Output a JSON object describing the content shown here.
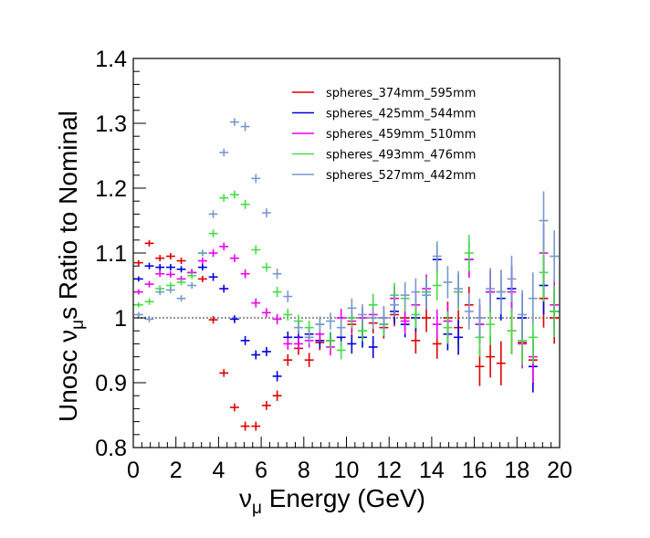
{
  "chart_data": {
    "type": "scatter",
    "title": "",
    "xlabel": "ν_μ Energy (GeV)",
    "ylabel": "Unosc ν_μs Ratio to Nominal",
    "xlabel_parts": {
      "nu": "ν",
      "sub": "μ",
      "rest": " Energy (GeV)"
    },
    "ylabel_parts": {
      "pre": "Unosc ν",
      "sub": "μ",
      "rest": "s Ratio to Nominal"
    },
    "xlim": [
      0,
      20
    ],
    "ylim": [
      0.8,
      1.4
    ],
    "x_ticks": [
      0,
      2,
      4,
      6,
      8,
      10,
      12,
      14,
      16,
      18,
      20
    ],
    "x_tick_labels": [
      "0",
      "2",
      "4",
      "6",
      "8",
      "10",
      "12",
      "14",
      "16",
      "18",
      "20"
    ],
    "y_ticks": [
      0.8,
      0.9,
      1.0,
      1.1,
      1.2,
      1.3,
      1.4
    ],
    "y_tick_labels": [
      "0.8",
      "0.9",
      "1",
      "1.1",
      "1.2",
      "1.3",
      "1.4"
    ],
    "grid": false,
    "legend_position": "top-right",
    "reference_line": {
      "y": 1.0,
      "style": "dotted",
      "color": "#999999"
    },
    "series": [
      {
        "name": "spheres_374mm_595mm",
        "color": "#e00000",
        "x": [
          0.25,
          0.75,
          1.25,
          1.75,
          2.25,
          2.75,
          3.25,
          3.75,
          4.25,
          4.75,
          5.25,
          5.75,
          6.25,
          6.75,
          7.25,
          7.75,
          8.25,
          8.75,
          9.25,
          10.25,
          10.75,
          11.25,
          11.75,
          12.25,
          12.75,
          13.25,
          13.75,
          14.25,
          14.75,
          15.25,
          15.75,
          16.25,
          16.75,
          17.25,
          17.75,
          18.25,
          18.75,
          19.25,
          19.75
        ],
        "y": [
          1.085,
          1.115,
          1.092,
          1.095,
          1.088,
          1.07,
          1.06,
          0.997,
          0.915,
          0.862,
          0.833,
          0.833,
          0.865,
          0.88,
          0.935,
          0.953,
          0.935,
          0.962,
          0.965,
          0.99,
          0.98,
          0.992,
          0.985,
          1.005,
          1.0,
          0.965,
          1.0,
          0.96,
          1.0,
          0.985,
          1.02,
          0.925,
          0.94,
          0.93,
          0.98,
          0.962,
          0.935,
          1.03,
          1.0
        ],
        "err": [
          0.004,
          0.005,
          0.005,
          0.005,
          0.005,
          0.005,
          0.005,
          0.006,
          0.006,
          0.006,
          0.007,
          0.007,
          0.007,
          0.008,
          0.009,
          0.01,
          0.011,
          0.012,
          0.013,
          0.014,
          0.015,
          0.016,
          0.017,
          0.018,
          0.019,
          0.02,
          0.022,
          0.023,
          0.025,
          0.027,
          0.028,
          0.03,
          0.032,
          0.034,
          0.036,
          0.038,
          0.04,
          0.045,
          0.04
        ]
      },
      {
        "name": "spheres_425mm_544mm",
        "color": "#0000dd",
        "x": [
          0.25,
          0.75,
          1.25,
          1.75,
          2.25,
          2.75,
          3.25,
          3.75,
          4.25,
          4.75,
          5.25,
          5.75,
          6.25,
          6.75,
          7.25,
          7.75,
          8.25,
          8.75,
          9.25,
          9.75,
          10.25,
          10.75,
          11.25,
          11.75,
          12.25,
          12.75,
          13.25,
          13.75,
          14.25,
          14.75,
          15.25,
          15.75,
          16.25,
          16.75,
          17.25,
          17.75,
          18.25,
          18.75,
          19.25,
          19.75
        ],
        "y": [
          1.06,
          1.08,
          1.078,
          1.078,
          1.075,
          1.07,
          1.078,
          1.063,
          1.045,
          0.998,
          0.965,
          0.943,
          0.948,
          0.91,
          0.97,
          0.97,
          0.975,
          0.965,
          0.965,
          0.97,
          0.96,
          0.97,
          0.955,
          0.99,
          1.01,
          0.99,
          1.0,
          1.04,
          1.09,
          0.975,
          0.97,
          1.09,
          0.99,
          1.04,
          1.03,
          1.045,
          1.0,
          0.925,
          1.05,
          1.01
        ],
        "err": [
          0.004,
          0.005,
          0.005,
          0.005,
          0.005,
          0.005,
          0.005,
          0.006,
          0.006,
          0.006,
          0.007,
          0.007,
          0.007,
          0.008,
          0.009,
          0.01,
          0.011,
          0.012,
          0.013,
          0.014,
          0.015,
          0.016,
          0.017,
          0.018,
          0.019,
          0.02,
          0.021,
          0.022,
          0.023,
          0.025,
          0.027,
          0.028,
          0.03,
          0.032,
          0.034,
          0.036,
          0.038,
          0.04,
          0.045,
          0.04
        ]
      },
      {
        "name": "spheres_459mm_510mm",
        "color": "#ee00ee",
        "x": [
          0.25,
          0.75,
          1.25,
          1.75,
          2.25,
          2.75,
          3.25,
          3.75,
          4.25,
          4.75,
          5.25,
          5.75,
          6.25,
          6.75,
          7.25,
          7.75,
          8.25,
          8.75,
          9.25,
          9.75,
          10.25,
          10.75,
          11.25,
          11.75,
          12.25,
          12.75,
          13.25,
          13.75,
          14.25,
          14.75,
          15.25,
          15.75,
          16.25,
          16.75,
          17.25,
          17.75,
          18.25,
          18.75,
          19.25,
          19.75
        ],
        "y": [
          1.04,
          1.052,
          1.068,
          1.067,
          1.06,
          1.07,
          1.088,
          1.1,
          1.11,
          1.092,
          1.068,
          1.023,
          1.008,
          0.998,
          0.96,
          0.96,
          0.965,
          0.975,
          0.955,
          1.0,
          0.995,
          1.0,
          1.005,
          1.0,
          1.03,
          0.995,
          1.02,
          1.045,
          0.99,
          0.995,
          1.04,
          1.09,
          0.99,
          1.04,
          1.04,
          1.04,
          0.96,
          0.94,
          1.1,
          1.02
        ],
        "err": [
          0.004,
          0.005,
          0.005,
          0.005,
          0.005,
          0.005,
          0.005,
          0.006,
          0.006,
          0.006,
          0.007,
          0.007,
          0.007,
          0.008,
          0.009,
          0.01,
          0.011,
          0.012,
          0.013,
          0.014,
          0.015,
          0.016,
          0.017,
          0.018,
          0.019,
          0.02,
          0.021,
          0.022,
          0.023,
          0.025,
          0.027,
          0.028,
          0.03,
          0.032,
          0.034,
          0.036,
          0.038,
          0.04,
          0.045,
          0.04
        ]
      },
      {
        "name": "spheres_493mm_476mm",
        "color": "#44dd44",
        "x": [
          0.25,
          0.75,
          1.25,
          1.75,
          2.25,
          2.75,
          3.25,
          3.75,
          4.25,
          4.75,
          5.25,
          5.75,
          6.25,
          6.75,
          7.25,
          7.75,
          8.25,
          8.75,
          9.25,
          9.75,
          10.25,
          10.75,
          11.25,
          11.75,
          12.25,
          12.75,
          13.25,
          13.75,
          14.25,
          14.75,
          15.25,
          15.75,
          16.25,
          16.75,
          17.25,
          17.75,
          18.25,
          18.75,
          19.25,
          19.75
        ],
        "y": [
          1.02,
          1.025,
          1.045,
          1.05,
          1.055,
          1.065,
          1.1,
          1.13,
          1.185,
          1.19,
          1.175,
          1.105,
          1.078,
          1.04,
          1.005,
          0.995,
          0.985,
          0.99,
          0.965,
          0.95,
          1.0,
          0.98,
          1.02,
          0.99,
          1.035,
          1.03,
          1.005,
          1.04,
          1.05,
          0.985,
          1.04,
          1.1,
          0.97,
          0.99,
          1.04,
          0.98,
          0.965,
          0.97,
          1.07,
          1.01
        ],
        "err": [
          0.004,
          0.005,
          0.005,
          0.005,
          0.005,
          0.005,
          0.005,
          0.006,
          0.006,
          0.006,
          0.007,
          0.007,
          0.007,
          0.008,
          0.009,
          0.01,
          0.011,
          0.012,
          0.013,
          0.014,
          0.015,
          0.016,
          0.017,
          0.018,
          0.019,
          0.02,
          0.021,
          0.022,
          0.023,
          0.025,
          0.027,
          0.028,
          0.03,
          0.032,
          0.034,
          0.036,
          0.038,
          0.04,
          0.045,
          0.04
        ]
      },
      {
        "name": "spheres_527mm_442mm",
        "color": "#7799cc",
        "x": [
          0.25,
          0.75,
          1.25,
          1.75,
          2.25,
          2.75,
          3.25,
          3.75,
          4.25,
          4.75,
          5.25,
          5.75,
          6.25,
          6.75,
          7.25,
          7.75,
          8.25,
          8.75,
          9.25,
          9.75,
          10.25,
          10.75,
          11.25,
          11.75,
          12.25,
          12.75,
          13.25,
          13.75,
          14.25,
          14.75,
          15.25,
          15.75,
          16.25,
          16.75,
          17.25,
          17.75,
          18.25,
          18.75,
          19.25,
          19.75
        ],
        "y": [
          1.005,
          0.998,
          1.04,
          1.043,
          1.03,
          1.05,
          1.1,
          1.16,
          1.255,
          1.302,
          1.295,
          1.215,
          1.162,
          1.068,
          1.033,
          0.985,
          0.97,
          0.99,
          0.995,
          0.985,
          1.015,
          1.005,
          1.0,
          1.0,
          1.02,
          1.035,
          1.04,
          1.035,
          1.095,
          1.055,
          1.045,
          1.01,
          1.0,
          1.045,
          1.04,
          1.06,
          1.005,
          1.03,
          1.15,
          1.095
        ],
        "err": [
          0.004,
          0.005,
          0.005,
          0.005,
          0.005,
          0.005,
          0.005,
          0.006,
          0.006,
          0.006,
          0.007,
          0.007,
          0.007,
          0.008,
          0.009,
          0.01,
          0.011,
          0.012,
          0.013,
          0.014,
          0.015,
          0.016,
          0.017,
          0.018,
          0.019,
          0.02,
          0.021,
          0.022,
          0.023,
          0.025,
          0.027,
          0.028,
          0.03,
          0.032,
          0.034,
          0.036,
          0.038,
          0.04,
          0.045,
          0.04
        ]
      }
    ]
  }
}
